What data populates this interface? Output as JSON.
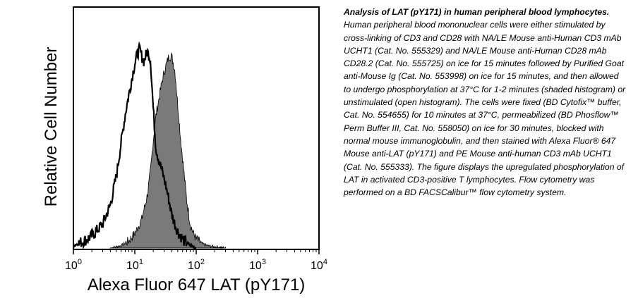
{
  "chart_data": {
    "type": "area",
    "xlabel": "Alexa Fluor 647 LAT (pY171)",
    "ylabel": "Relative Cell Number",
    "xscale": "log",
    "xlim": [
      1,
      10000
    ],
    "ylim": [
      0,
      1
    ],
    "grid": false,
    "tick_labels": [
      {
        "base": "10",
        "exp": "0"
      },
      {
        "base": "10",
        "exp": "1"
      },
      {
        "base": "10",
        "exp": "2"
      },
      {
        "base": "10",
        "exp": "3"
      },
      {
        "base": "10",
        "exp": "4"
      }
    ],
    "series": [
      {
        "style": "shaded",
        "color": "#7a7a7a",
        "x": [
          4,
          6,
          8,
          10,
          13,
          16,
          18,
          20,
          22,
          25,
          28,
          32,
          36,
          40,
          45,
          50,
          56,
          63,
          70,
          80,
          90,
          100,
          120,
          150,
          200,
          300
        ],
        "y": [
          0.0,
          0.01,
          0.03,
          0.06,
          0.12,
          0.22,
          0.32,
          0.45,
          0.55,
          0.63,
          0.7,
          0.76,
          0.8,
          0.8,
          0.74,
          0.6,
          0.45,
          0.32,
          0.2,
          0.1,
          0.06,
          0.04,
          0.02,
          0.01,
          0.005,
          0.0
        ]
      },
      {
        "style": "open",
        "color": "#000000",
        "x": [
          1,
          1.5,
          2,
          3,
          4,
          5,
          6,
          7,
          8,
          9,
          10,
          11,
          12,
          13,
          14,
          16,
          18,
          20,
          22,
          25,
          28,
          32,
          36,
          40,
          45,
          50,
          56,
          63,
          70,
          80,
          100
        ],
        "y": [
          0.01,
          0.03,
          0.05,
          0.1,
          0.18,
          0.3,
          0.44,
          0.56,
          0.64,
          0.71,
          0.77,
          0.81,
          0.83,
          0.8,
          0.78,
          0.82,
          0.79,
          0.58,
          0.42,
          0.36,
          0.32,
          0.26,
          0.2,
          0.14,
          0.1,
          0.07,
          0.05,
          0.03,
          0.02,
          0.01,
          0.0
        ]
      }
    ]
  },
  "caption": {
    "title": "Analysis of LAT (pY171) in human peripheral blood lymphocytes.",
    "body": "Human peripheral blood mononuclear cells were either stimulated by cross-linking of CD3 and CD28 with NA/LE Mouse anti-Human CD3 mAb UCHT1 (Cat. No. 555329) and NA/LE Mouse anti-Human CD28 mAb CD28.2 (Cat. No. 555725) on ice for 15 minutes followed by Purified Goat anti-Mouse Ig (Cat. No. 553998) on ice for 15 minutes, and then allowed to undergo phosphorylation at 37°C for 1-2 minutes (shaded histogram) or unstimulated (open histogram). The cells were fixed (BD Cytofix™ buffer, Cat. No. 554655) for 10 minutes at 37°C, permeabilized (BD Phosflow™ Perm Buffer III, Cat. No. 558050) on ice for 30 minutes, blocked with normal mouse immunoglobulin, and then stained with Alexa Fluor® 647 Mouse anti-LAT (pY171) and PE Mouse anti-human CD3 mAb UCHT1 (Cat. No. 555333). The figure displays the upregulated phosphorylation of LAT in activated CD3-positive T lymphocytes. Flow cytometry was performed on a BD FACSCalibur™ flow cytometry system."
  }
}
